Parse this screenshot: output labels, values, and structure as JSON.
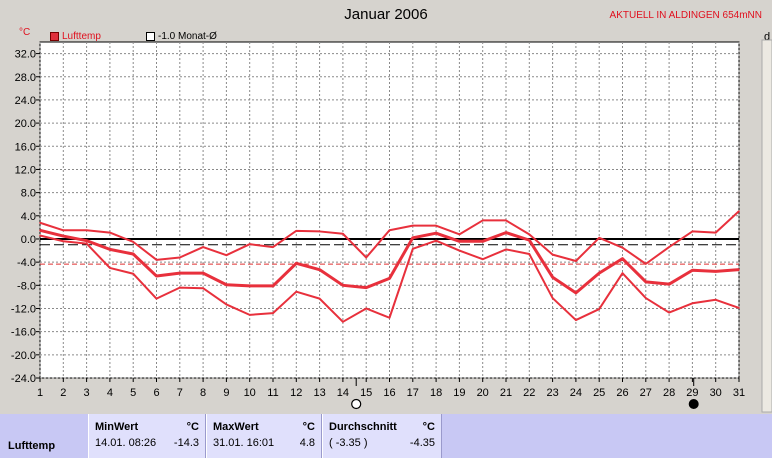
{
  "header": {
    "title": "Januar 2006",
    "station": "AKTUELL IN ALDINGEN 654mNN",
    "unit": "°C",
    "right_char": "d"
  },
  "legend": {
    "luft": "Lufttemp",
    "monat": "-1.0 Monat-Ø"
  },
  "colors": {
    "series": "#e8303c",
    "grid": "#8a8a8a",
    "zero": "#000000",
    "average": "#e03030",
    "stats_bg": "#e0e0fc"
  },
  "chart_data": {
    "type": "line",
    "title": "Januar 2006",
    "ylabel": "°C",
    "ylim": [
      -24,
      34
    ],
    "yticks": [
      -24,
      -20,
      -16,
      -12,
      -8,
      -4,
      0,
      4,
      8,
      12,
      16,
      20,
      24,
      28,
      32
    ],
    "ytick_labels": [
      "-24.0",
      "-20.0",
      "-16.0",
      "-12.0",
      "-8.0",
      "-4.0",
      "0.0",
      "4.0",
      "8.0",
      "12.0",
      "16.0",
      "20.0",
      "24.0",
      "28.0",
      "32.0"
    ],
    "x": [
      1,
      2,
      3,
      4,
      5,
      6,
      7,
      8,
      9,
      10,
      11,
      12,
      13,
      14,
      15,
      16,
      17,
      18,
      19,
      20,
      21,
      22,
      23,
      24,
      25,
      26,
      27,
      28,
      29,
      30,
      31
    ],
    "grid": true,
    "legend_position": "top-left",
    "reference_lines": [
      {
        "name": "0.0",
        "value": 0.0,
        "style": "solid"
      },
      {
        "name": "-1.0 Monat-Ø",
        "value": -1.0,
        "style": "dashed"
      },
      {
        "name": "Durchschnitt",
        "value": -4.35,
        "style": "dashed"
      }
    ],
    "series": [
      {
        "name": "max",
        "values": [
          2.8,
          1.5,
          1.5,
          1.1,
          -0.5,
          -3.6,
          -3.2,
          -1.4,
          -2.8,
          -0.9,
          -1.4,
          1.4,
          1.3,
          0.9,
          -3.2,
          1.5,
          2.3,
          2.3,
          0.8,
          3.2,
          3.2,
          0.8,
          -2.7,
          -3.8,
          0.2,
          -1.5,
          -4.3,
          -1.4,
          1.3,
          1.1,
          4.8
        ]
      },
      {
        "name": "mean",
        "values": [
          1.5,
          0.5,
          -0.3,
          -1.8,
          -2.6,
          -6.4,
          -5.9,
          -5.9,
          -7.9,
          -8.1,
          -8.1,
          -4.2,
          -5.3,
          -8.0,
          -8.4,
          -6.8,
          0.2,
          1.0,
          -0.4,
          -0.4,
          1.1,
          -0.2,
          -6.6,
          -9.3,
          -5.9,
          -3.4,
          -7.4,
          -7.8,
          -5.4,
          -5.6,
          -5.3
        ]
      },
      {
        "name": "min",
        "values": [
          0.6,
          -0.4,
          -0.8,
          -5.0,
          -6.0,
          -10.3,
          -8.4,
          -8.5,
          -11.3,
          -13.1,
          -12.8,
          -9.1,
          -10.3,
          -14.3,
          -12.0,
          -13.6,
          -1.7,
          -0.3,
          -2.0,
          -3.5,
          -1.8,
          -2.6,
          -10.2,
          -14.0,
          -12.1,
          -5.9,
          -10.2,
          -12.7,
          -11.1,
          -10.5,
          -11.9
        ]
      }
    ]
  },
  "markers": {
    "day_marker_a": 15,
    "day_marker_b": 30
  },
  "stats": {
    "row_label": "Lufttemp",
    "min": {
      "header": "MinWert",
      "unit": "°C",
      "time": "14.01.  08:26",
      "value": "-14.3"
    },
    "max": {
      "header": "MaxWert",
      "unit": "°C",
      "time": "31.01.  16:01",
      "value": "4.8"
    },
    "avg": {
      "header": "Durchschnitt",
      "unit": "°C",
      "prev": "( -3.35 )",
      "value": "-4.35"
    }
  }
}
